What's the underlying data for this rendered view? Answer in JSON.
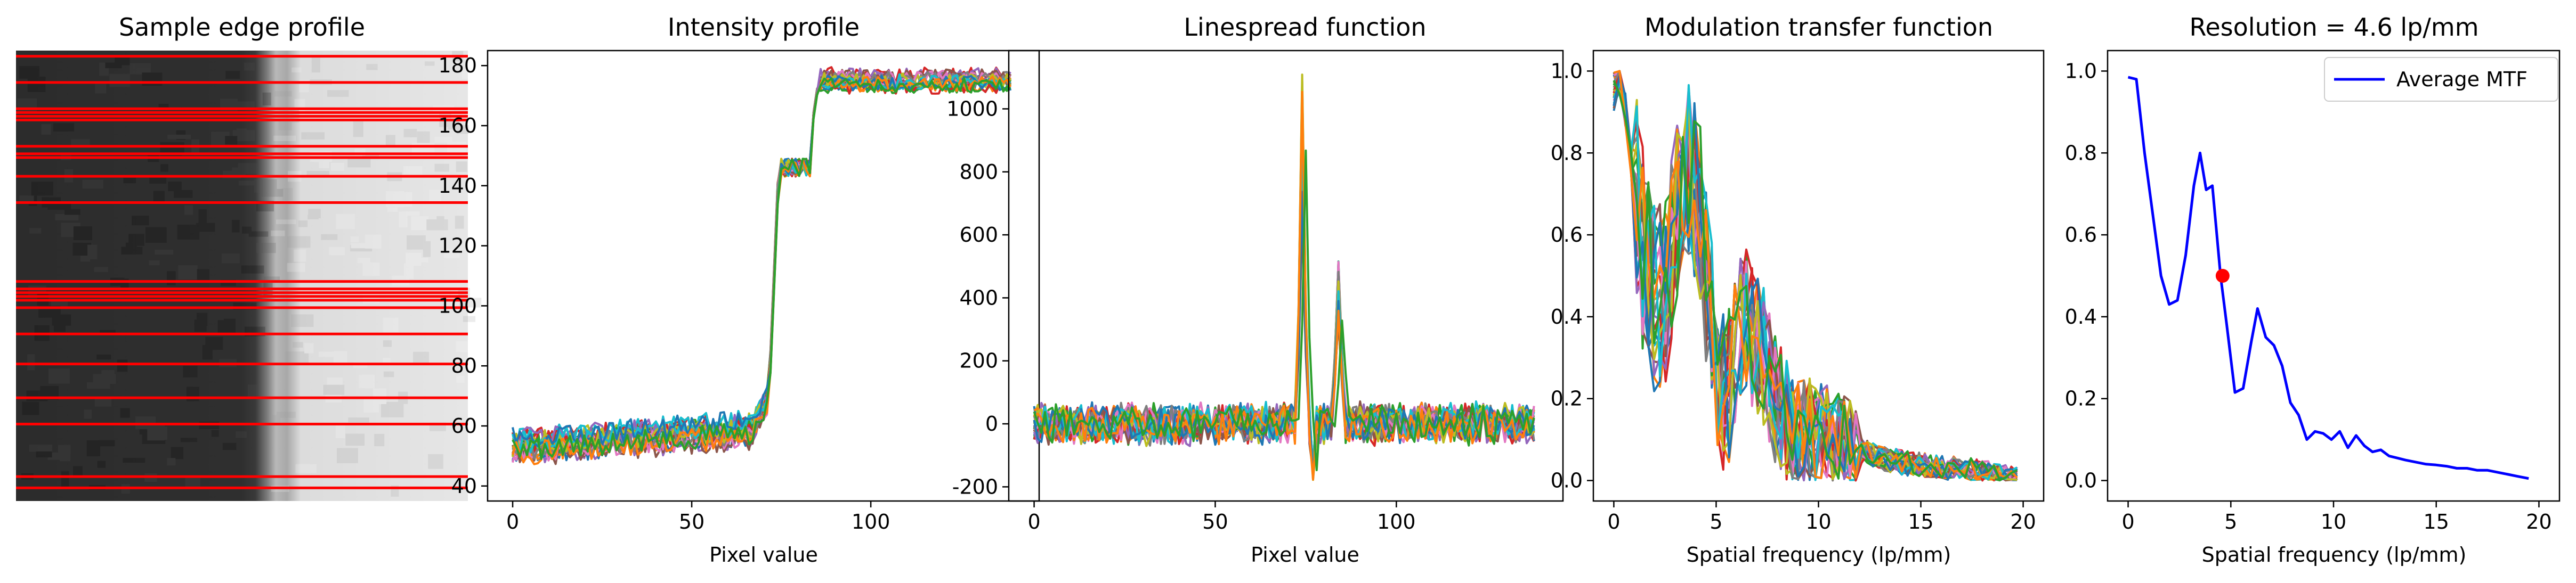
{
  "panels": {
    "edge": {
      "title": "Sample edge profile"
    },
    "intensity": {
      "title": "Intensity profile",
      "xlabel": "Pixel value"
    },
    "lsf": {
      "title": "Linespread function",
      "xlabel": "Pixel value"
    },
    "mtf": {
      "title": "Modulation transfer function",
      "xlabel": "Spatial frequency (lp/mm)"
    },
    "avg": {
      "title": "Resolution = 4.6 lp/mm",
      "xlabel": "Spatial frequency (lp/mm)",
      "legend": "Average MTF"
    }
  },
  "colors": {
    "cycle": [
      "#1f77b4",
      "#ff7f0e",
      "#2ca02c",
      "#d62728",
      "#9467bd",
      "#8c564b",
      "#e377c2",
      "#7f7f7f",
      "#bcbd22",
      "#17becf"
    ],
    "profile_lines": "#ff0000",
    "average_mtf": "#0000ff",
    "resolution_marker": "#ff0000"
  },
  "chart_data": [
    {
      "type": "image",
      "title": "Sample edge profile",
      "image_rows": 120,
      "dark_region": [
        0,
        0.55
      ],
      "transition": [
        0.55,
        0.6
      ],
      "light_region": [
        0.6,
        1.0
      ],
      "profile_rows": [
        1,
        8,
        15,
        16,
        17,
        18,
        25,
        27,
        28,
        33,
        40,
        61,
        63,
        64,
        65,
        66,
        68,
        75,
        83,
        92,
        99,
        113,
        116
      ]
    },
    {
      "type": "line",
      "title": "Intensity profile",
      "xlabel": "Pixel value",
      "xlim": [
        -7,
        147
      ],
      "ylim": [
        35,
        185
      ],
      "xticks": [
        0,
        50,
        100
      ],
      "yticks": [
        40,
        60,
        80,
        100,
        120,
        140,
        160,
        180
      ],
      "n_series": 23,
      "x_range": [
        0,
        139
      ],
      "low_level": 53,
      "high_level": 175,
      "edge_start": 72,
      "edge_end": 84,
      "plateau_level": 146
    },
    {
      "type": "line",
      "title": "Linespread function",
      "xlabel": "Pixel value",
      "xlim": [
        -7,
        146
      ],
      "ylim": [
        -245,
        1185
      ],
      "xticks": [
        0,
        50,
        100
      ],
      "yticks": [
        -200,
        0,
        200,
        400,
        600,
        800,
        1000
      ],
      "n_series": 23,
      "x_range": [
        0,
        138
      ],
      "noise_amplitude": 60,
      "peak1": {
        "x": 74,
        "max": 1120
      },
      "peak2": {
        "x": 84,
        "max": 540
      }
    },
    {
      "type": "line",
      "title": "Modulation transfer function",
      "xlabel": "Spatial frequency (lp/mm)",
      "xlim": [
        -1,
        21
      ],
      "ylim": [
        -0.05,
        1.05
      ],
      "xticks": [
        0,
        5,
        10,
        15,
        20
      ],
      "yticks": [
        0.0,
        0.2,
        0.4,
        0.6,
        0.8,
        1.0
      ],
      "n_series": 23,
      "x_range": [
        0,
        19.7
      ]
    },
    {
      "type": "line",
      "title": "Resolution = 4.6 lp/mm",
      "xlabel": "Spatial frequency (lp/mm)",
      "xlim": [
        -1,
        21
      ],
      "ylim": [
        -0.05,
        1.05
      ],
      "xticks": [
        0,
        5,
        10,
        15,
        20
      ],
      "yticks": [
        0.0,
        0.2,
        0.4,
        0.6,
        0.8,
        1.0
      ],
      "legend_position": "upper right",
      "series": [
        {
          "name": "Average MTF",
          "x": [
            0,
            0.4,
            0.8,
            1.2,
            1.6,
            2.0,
            2.4,
            2.8,
            3.2,
            3.5,
            3.8,
            4.1,
            4.5,
            4.8,
            5.2,
            5.6,
            6.0,
            6.3,
            6.7,
            7.1,
            7.5,
            7.9,
            8.3,
            8.7,
            9.1,
            9.5,
            9.9,
            10.3,
            10.7,
            11.1,
            11.5,
            11.9,
            12.3,
            12.7,
            13.1,
            13.5,
            14.0,
            14.5,
            15.0,
            15.5,
            16.0,
            16.5,
            17.0,
            17.5,
            18.0,
            18.5,
            19.0,
            19.5
          ],
          "y": [
            0.985,
            0.98,
            0.8,
            0.65,
            0.5,
            0.43,
            0.44,
            0.55,
            0.72,
            0.8,
            0.71,
            0.72,
            0.5,
            0.38,
            0.215,
            0.225,
            0.34,
            0.42,
            0.35,
            0.33,
            0.28,
            0.19,
            0.16,
            0.1,
            0.12,
            0.115,
            0.1,
            0.12,
            0.08,
            0.11,
            0.085,
            0.07,
            0.075,
            0.06,
            0.055,
            0.05,
            0.045,
            0.04,
            0.038,
            0.035,
            0.03,
            0.03,
            0.025,
            0.025,
            0.02,
            0.015,
            0.01,
            0.005
          ]
        }
      ],
      "marker": {
        "x": 4.6,
        "y": 0.5
      }
    }
  ]
}
